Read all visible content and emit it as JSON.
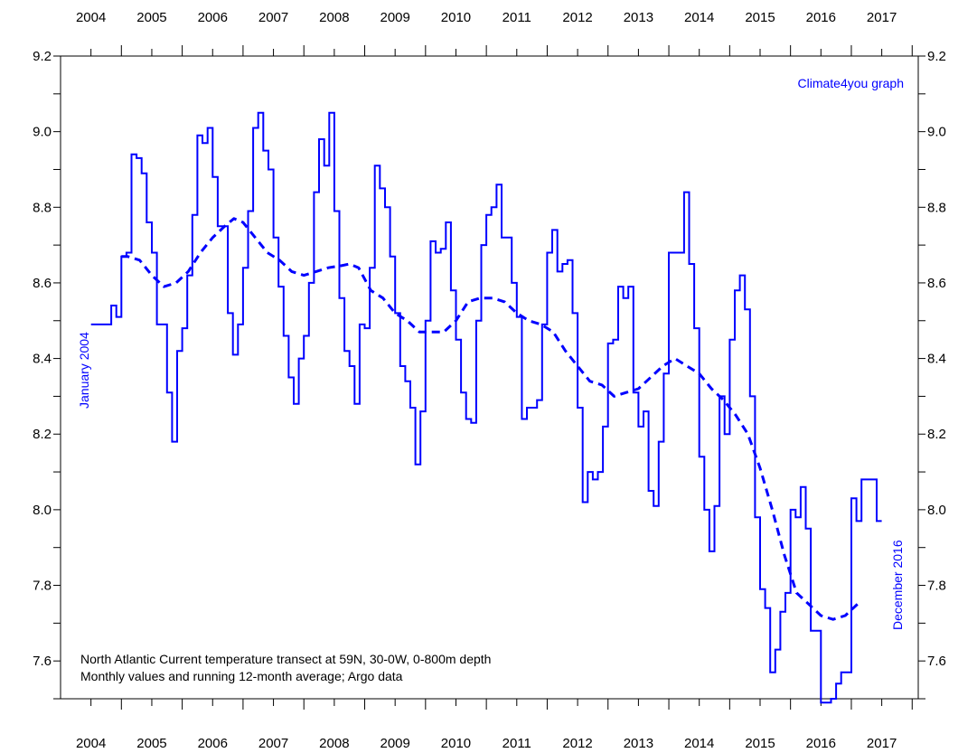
{
  "chart_data": {
    "type": "line",
    "title": "",
    "xlabel": "",
    "ylabel": "",
    "xlim": [
      2003.5,
      2017.6
    ],
    "ylim": [
      7.5,
      9.2
    ],
    "x_ticks": [
      "2004",
      "2005",
      "2006",
      "2007",
      "2008",
      "2009",
      "2010",
      "2011",
      "2012",
      "2013",
      "2014",
      "2015",
      "2016",
      "2017"
    ],
    "y_ticks": [
      "7.6",
      "7.8",
      "8.0",
      "8.2",
      "8.4",
      "8.6",
      "8.8",
      "9.0",
      "9.2"
    ],
    "grid": false,
    "colors": {
      "series": "#0000ff",
      "axis": "#000000"
    },
    "series": [
      {
        "style": "step",
        "x_start": 2004.0,
        "step": 0.083333,
        "values": [
          8.49,
          8.49,
          8.49,
          8.49,
          8.54,
          8.51,
          8.67,
          8.68,
          8.94,
          8.93,
          8.89,
          8.76,
          8.68,
          8.49,
          8.49,
          8.31,
          8.18,
          8.42,
          8.48,
          8.62,
          8.78,
          8.99,
          8.97,
          9.01,
          8.88,
          8.75,
          8.75,
          8.52,
          8.41,
          8.49,
          8.64,
          8.79,
          9.01,
          9.05,
          8.95,
          8.9,
          8.72,
          8.59,
          8.46,
          8.35,
          8.28,
          8.4,
          8.46,
          8.6,
          8.84,
          8.98,
          8.91,
          9.05,
          8.79,
          8.56,
          8.42,
          8.38,
          8.28,
          8.49,
          8.48,
          8.64,
          8.91,
          8.85,
          8.8,
          8.67,
          8.52,
          8.38,
          8.34,
          8.27,
          8.12,
          8.26,
          8.5,
          8.71,
          8.68,
          8.69,
          8.76,
          8.58,
          8.45,
          8.31,
          8.24,
          8.23,
          8.5,
          8.7,
          8.78,
          8.8,
          8.86,
          8.72,
          8.72,
          8.6,
          8.51,
          8.24,
          8.27,
          8.27,
          8.29,
          8.49,
          8.68,
          8.74,
          8.63,
          8.65,
          8.66,
          8.52,
          8.27,
          8.02,
          8.1,
          8.08,
          8.1,
          8.22,
          8.44,
          8.45,
          8.59,
          8.56,
          8.59,
          8.31,
          8.22,
          8.26,
          8.05,
          8.01,
          8.18,
          8.36,
          8.68,
          8.68,
          8.68,
          8.84,
          8.65,
          8.48,
          8.14,
          8.0,
          7.89,
          8.01,
          8.3,
          8.2,
          8.45,
          8.58,
          8.62,
          8.53,
          8.3,
          7.98,
          7.79,
          7.74,
          7.57,
          7.63,
          7.73,
          7.78,
          8.0,
          7.98,
          8.06,
          7.95,
          7.68,
          7.68,
          7.49,
          7.49,
          7.5,
          7.54,
          7.57,
          7.57,
          8.03,
          7.97,
          8.08,
          8.08,
          8.08,
          7.97
        ]
      },
      {
        "style": "dashed-smooth",
        "x": [
          2004.5,
          2004.6,
          2004.8,
          2005.0,
          2005.2,
          2005.4,
          2005.6,
          2005.8,
          2006.0,
          2006.2,
          2006.35,
          2006.5,
          2006.7,
          2006.9,
          2007.1,
          2007.3,
          2007.5,
          2007.7,
          2007.9,
          2008.1,
          2008.25,
          2008.4,
          2008.6,
          2008.8,
          2009.0,
          2009.2,
          2009.4,
          2009.6,
          2009.8,
          2010.0,
          2010.2,
          2010.4,
          2010.6,
          2010.8,
          2011.0,
          2011.2,
          2011.4,
          2011.6,
          2011.8,
          2012.0,
          2012.2,
          2012.4,
          2012.6,
          2012.8,
          2013.0,
          2013.2,
          2013.4,
          2013.6,
          2013.8,
          2014.0,
          2014.2,
          2014.4,
          2014.6,
          2014.8,
          2015.0,
          2015.2,
          2015.4,
          2015.6,
          2015.8,
          2016.0,
          2016.2,
          2016.4,
          2016.6
        ],
        "values": [
          8.67,
          8.67,
          8.66,
          8.62,
          8.59,
          8.6,
          8.63,
          8.68,
          8.72,
          8.75,
          8.77,
          8.76,
          8.72,
          8.68,
          8.66,
          8.63,
          8.62,
          8.63,
          8.64,
          8.645,
          8.65,
          8.64,
          8.58,
          8.56,
          8.52,
          8.5,
          8.47,
          8.47,
          8.47,
          8.5,
          8.55,
          8.56,
          8.56,
          8.55,
          8.52,
          8.5,
          8.49,
          8.47,
          8.42,
          8.38,
          8.34,
          8.33,
          8.3,
          8.31,
          8.32,
          8.35,
          8.38,
          8.4,
          8.38,
          8.36,
          8.32,
          8.29,
          8.25,
          8.2,
          8.11,
          8.0,
          7.88,
          7.78,
          7.75,
          7.72,
          7.71,
          7.72,
          7.75
        ]
      }
    ],
    "annotations": {
      "credit": "Climate4you graph",
      "start_label": "January 2004",
      "end_label": "December 2016",
      "caption_line1": "North Atlantic Current temperature transect at 59N, 30-0W, 0-800m depth",
      "caption_line2": "Monthly values and running 12-month average; Argo data"
    }
  }
}
